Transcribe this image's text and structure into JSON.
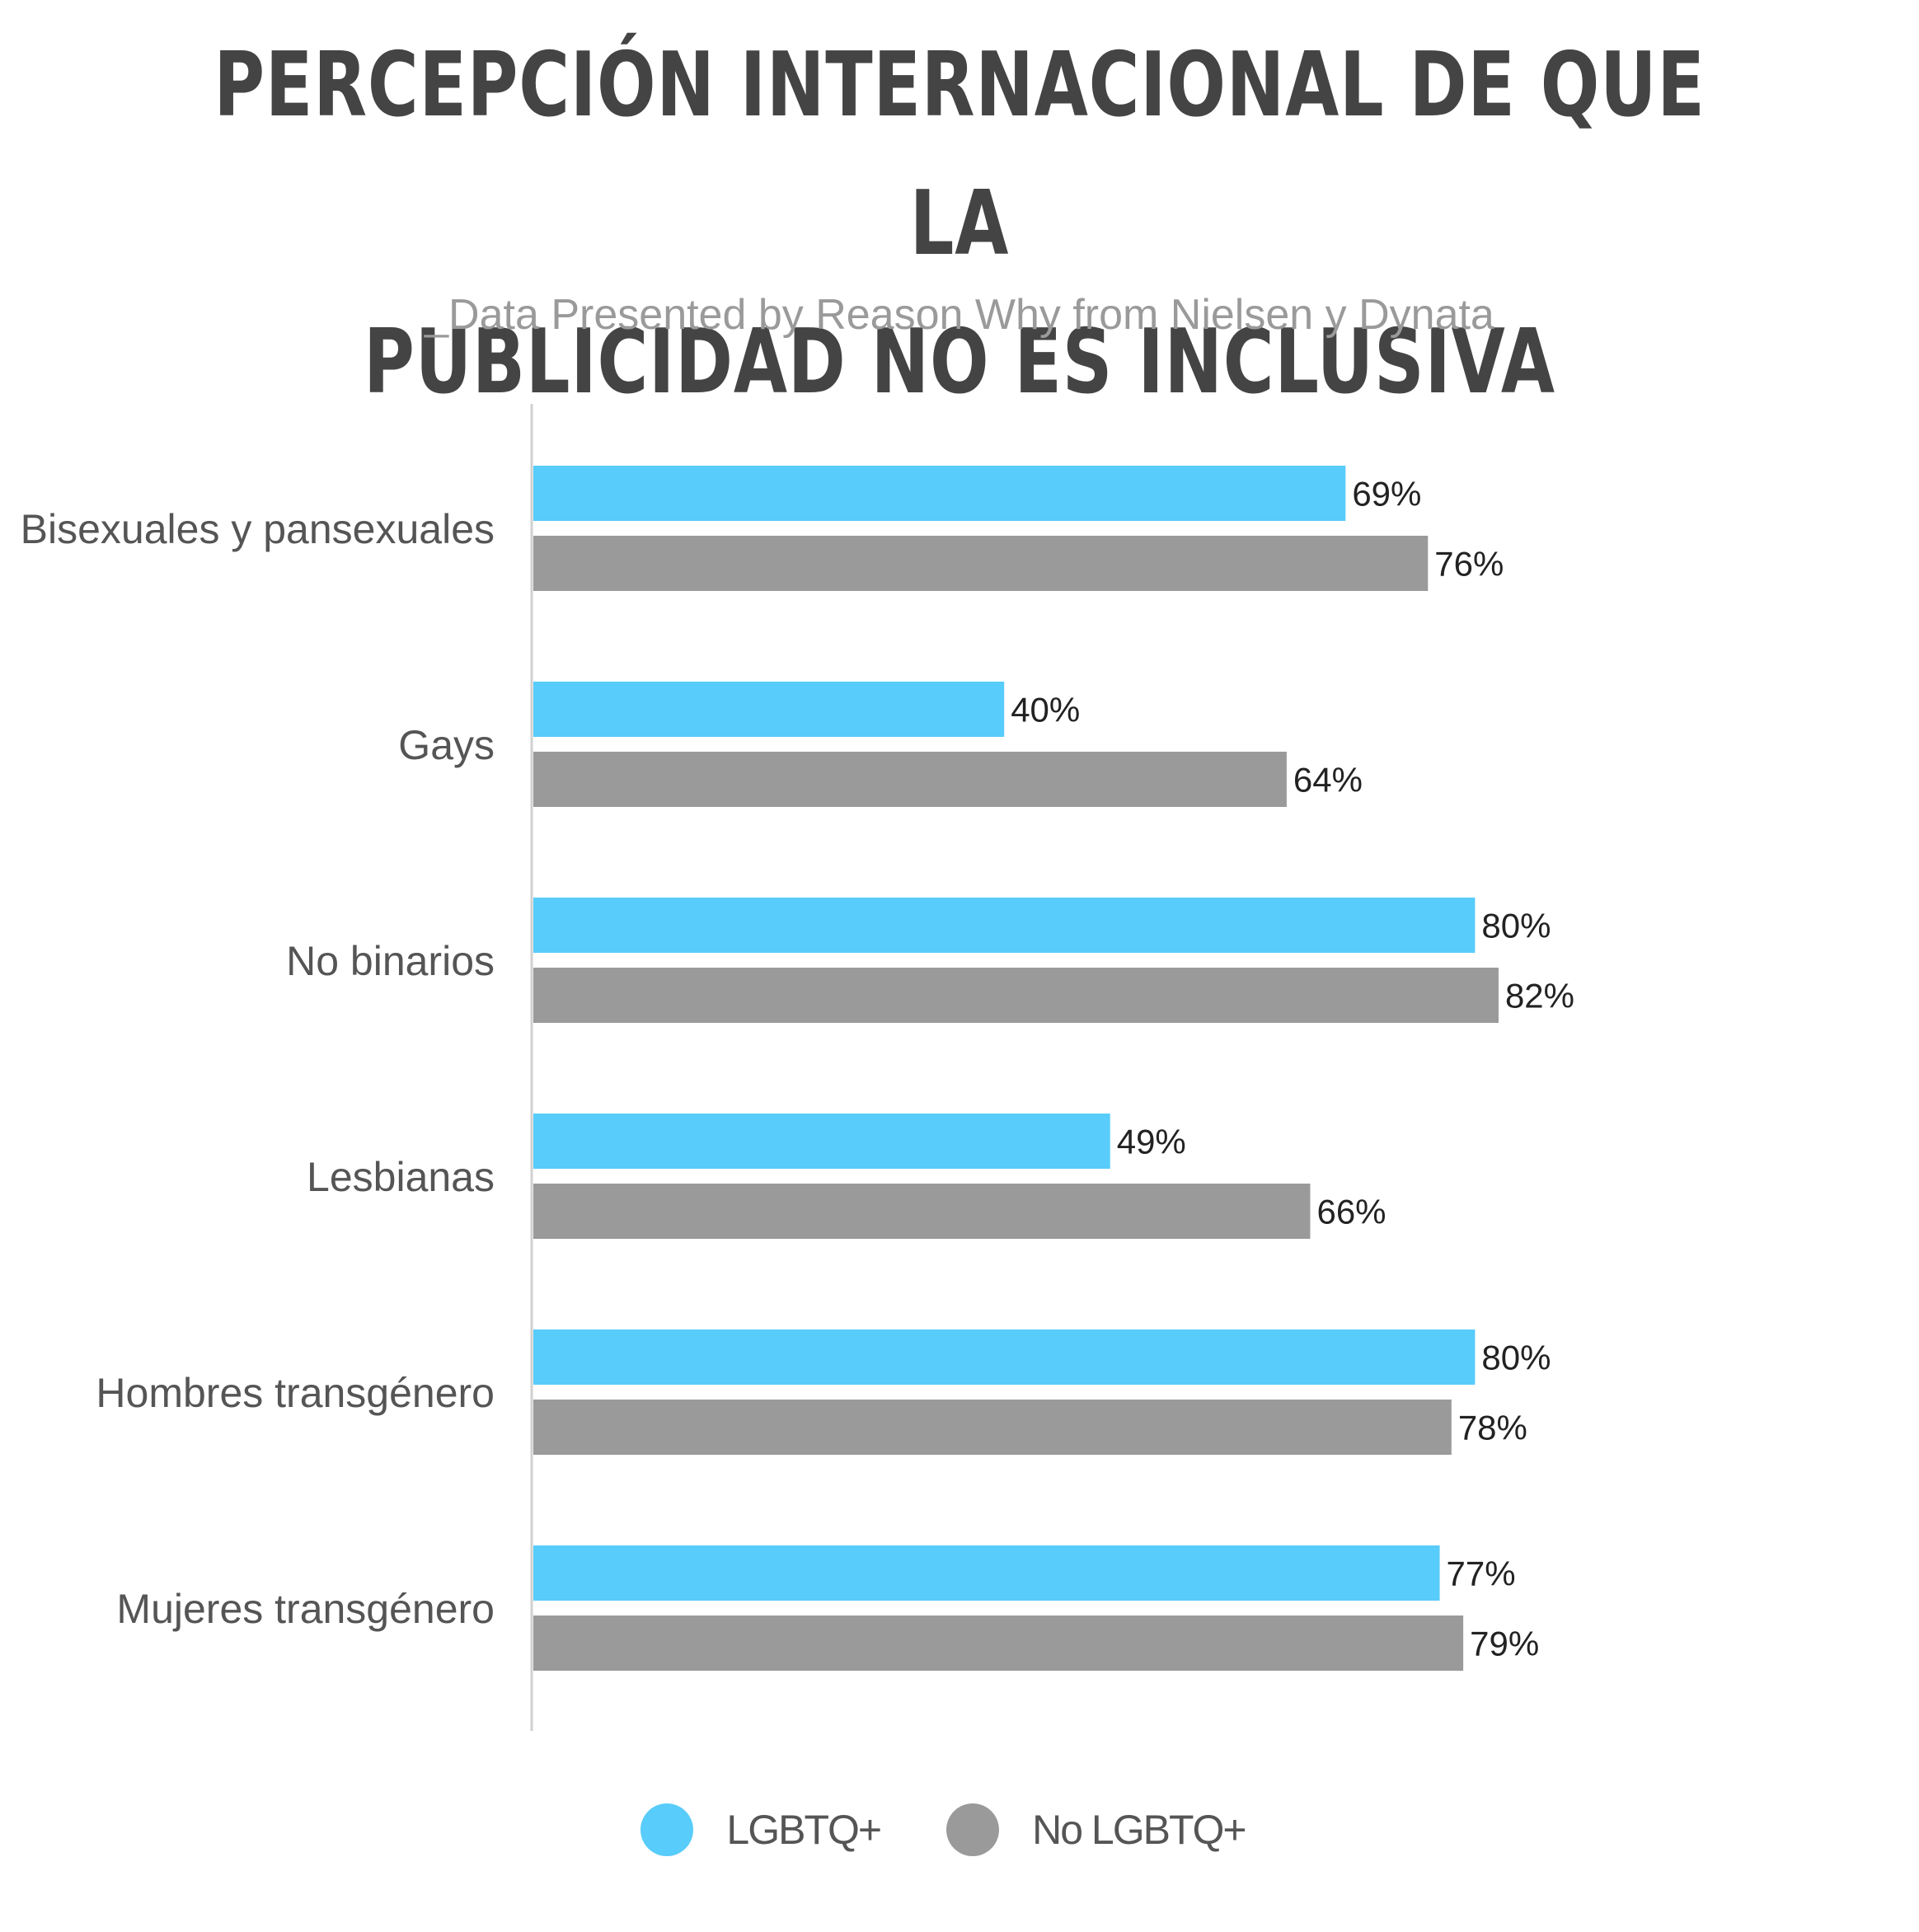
{
  "header": {
    "title_line1": "PERCEPCIÓN INTERNACIONAL DE QUE LA",
    "title_line2": "PUBLICIDAD NO ES INCLUSIVA",
    "subtitle": "_Data Presented by Reason Why from Nielsen y Dynata"
  },
  "colors": {
    "lgbtq": "#58CCFA",
    "no_lgbtq": "#9A9A9A",
    "axis": "#D0D0D0"
  },
  "legend": {
    "items": [
      {
        "label": "LGBTQ+",
        "color": "#58CCFA"
      },
      {
        "label": "No LGBTQ+",
        "color": "#9A9A9A"
      }
    ]
  },
  "chart_data": {
    "type": "bar",
    "orientation": "horizontal",
    "title": "PERCEPCIÓN INTERNACIONAL DE QUE LA PUBLICIDAD NO ES INCLUSIVA",
    "subtitle": "_Data Presented by Reason Why from Nielsen y Dynata",
    "categories": [
      "Bisexuales y pansexuales",
      "Gays",
      "No binarios",
      "Lesbianas",
      "Hombres transgénero",
      "Mujeres transgénero"
    ],
    "series": [
      {
        "name": "LGBTQ+",
        "values": [
          69,
          40,
          80,
          49,
          80,
          77
        ],
        "labels": [
          "69%",
          "40%",
          "80%",
          "49%",
          "80%",
          "77%"
        ]
      },
      {
        "name": "No LGBTQ+",
        "values": [
          76,
          64,
          82,
          66,
          78,
          79
        ],
        "labels": [
          "76%",
          "64%",
          "82%",
          "66%",
          "78%",
          "79%"
        ]
      }
    ],
    "xlim": [
      0,
      100
    ],
    "grid": false,
    "legend_position": "bottom"
  }
}
